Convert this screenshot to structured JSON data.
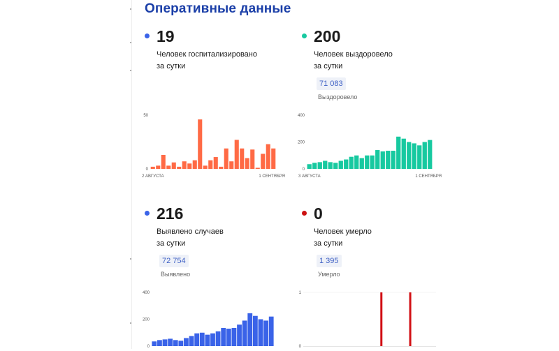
{
  "title": "Оперативные данные",
  "panels": [
    {
      "value": "19",
      "label_line1": "Человек госпитализировано",
      "label_line2": "за сутки",
      "total": "",
      "total_label": "",
      "dot_color": "#3a63e8"
    },
    {
      "value": "200",
      "label_line1": "Человек выздоровело",
      "label_line2": "за сутки",
      "total": "71 083",
      "total_label": "Выздоровело",
      "dot_color": "#17c9a0"
    },
    {
      "value": "216",
      "label_line1": "Выявлено случаев",
      "label_line2": "за сутки",
      "total": "72 754",
      "total_label": "Выявлено",
      "dot_color": "#3a63e8"
    },
    {
      "value": "0",
      "label_line1": "Человек умерло",
      "label_line2": "за сутки",
      "total": "1 395",
      "total_label": "Умерло",
      "dot_color": "#cc1111"
    }
  ],
  "chart_data": [
    {
      "type": "bar",
      "color": "#ff6a45",
      "ylim": [
        0,
        50
      ],
      "yticks": [
        0,
        50
      ],
      "x_start_label": "2 АВГУСТА",
      "x_end_label": "1 СЕНТЯБРЯ",
      "values": [
        2,
        3,
        13,
        3,
        6,
        2,
        7,
        5,
        8,
        46,
        3,
        8,
        11,
        2,
        19,
        7,
        27,
        19,
        10,
        18,
        1,
        14,
        23,
        19
      ]
    },
    {
      "type": "bar",
      "color": "#17c9a0",
      "ylim": [
        0,
        400
      ],
      "yticks": [
        0,
        200,
        400
      ],
      "x_start_label": "3 АВГУСТА",
      "x_end_label": "1 СЕНТЯБРЯ",
      "values": [
        35,
        45,
        50,
        60,
        50,
        45,
        60,
        70,
        90,
        100,
        80,
        100,
        100,
        140,
        130,
        135,
        135,
        240,
        225,
        200,
        190,
        175,
        200,
        215
      ]
    },
    {
      "type": "bar",
      "color": "#3a63e8",
      "ylim": [
        0,
        400
      ],
      "yticks": [
        0,
        200,
        400
      ],
      "values": [
        35,
        45,
        50,
        55,
        45,
        40,
        60,
        75,
        95,
        100,
        85,
        95,
        110,
        135,
        130,
        135,
        160,
        190,
        245,
        225,
        200,
        190,
        220
      ]
    },
    {
      "type": "bar",
      "color": "#d10f14",
      "ylim": [
        0,
        1
      ],
      "yticks": [
        0,
        1
      ],
      "values": [
        0,
        0,
        0,
        0,
        0,
        0,
        0,
        0,
        0,
        0,
        0,
        0,
        0,
        1,
        0,
        0,
        0,
        0,
        1,
        0,
        0,
        0,
        0
      ]
    }
  ]
}
